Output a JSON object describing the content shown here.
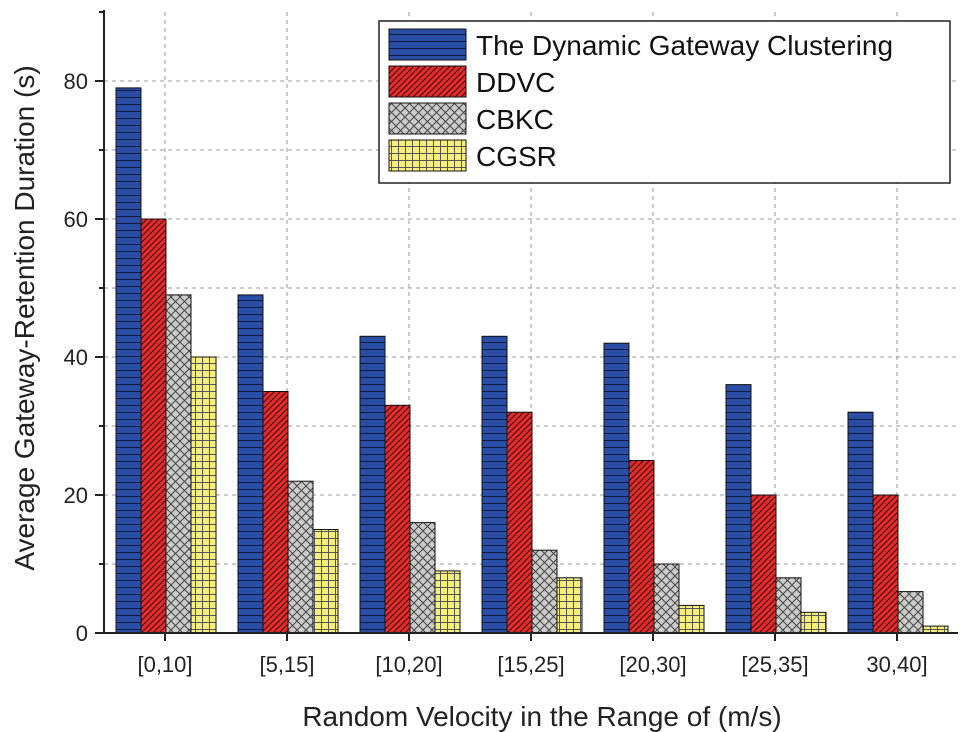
{
  "chart_data": {
    "type": "bar",
    "title": "",
    "xlabel": "Random Velocity in the Range of (m/s)",
    "ylabel": "Average Gateway-Retention Duration (s)",
    "categories": [
      "[0,10]",
      "[5,15]",
      "[10,20]",
      "[15,25]",
      "[20,30]",
      "[25,35]",
      "30,40]"
    ],
    "ylim": [
      0,
      90
    ],
    "yticks": [
      0,
      20,
      40,
      60,
      80
    ],
    "grid": true,
    "legend_position": "top-right",
    "series": [
      {
        "name": "The Dynamic Gateway Clustering",
        "color": "#2a4da6",
        "pattern": "horizontal-lines",
        "values": [
          79,
          49,
          43,
          43,
          42,
          36,
          32
        ]
      },
      {
        "name": "DDVC",
        "color": "#e32b2b",
        "pattern": "diagonal-hatch",
        "values": [
          60,
          35,
          33,
          32,
          25,
          20,
          20
        ]
      },
      {
        "name": "CBKC",
        "color": "#c8c8c8",
        "pattern": "cross-hatch",
        "values": [
          49,
          22,
          16,
          12,
          10,
          8,
          6
        ]
      },
      {
        "name": "CGSR",
        "color": "#f5ee7a",
        "pattern": "grid",
        "values": [
          40,
          15,
          9,
          8,
          4,
          3,
          1
        ]
      }
    ]
  }
}
